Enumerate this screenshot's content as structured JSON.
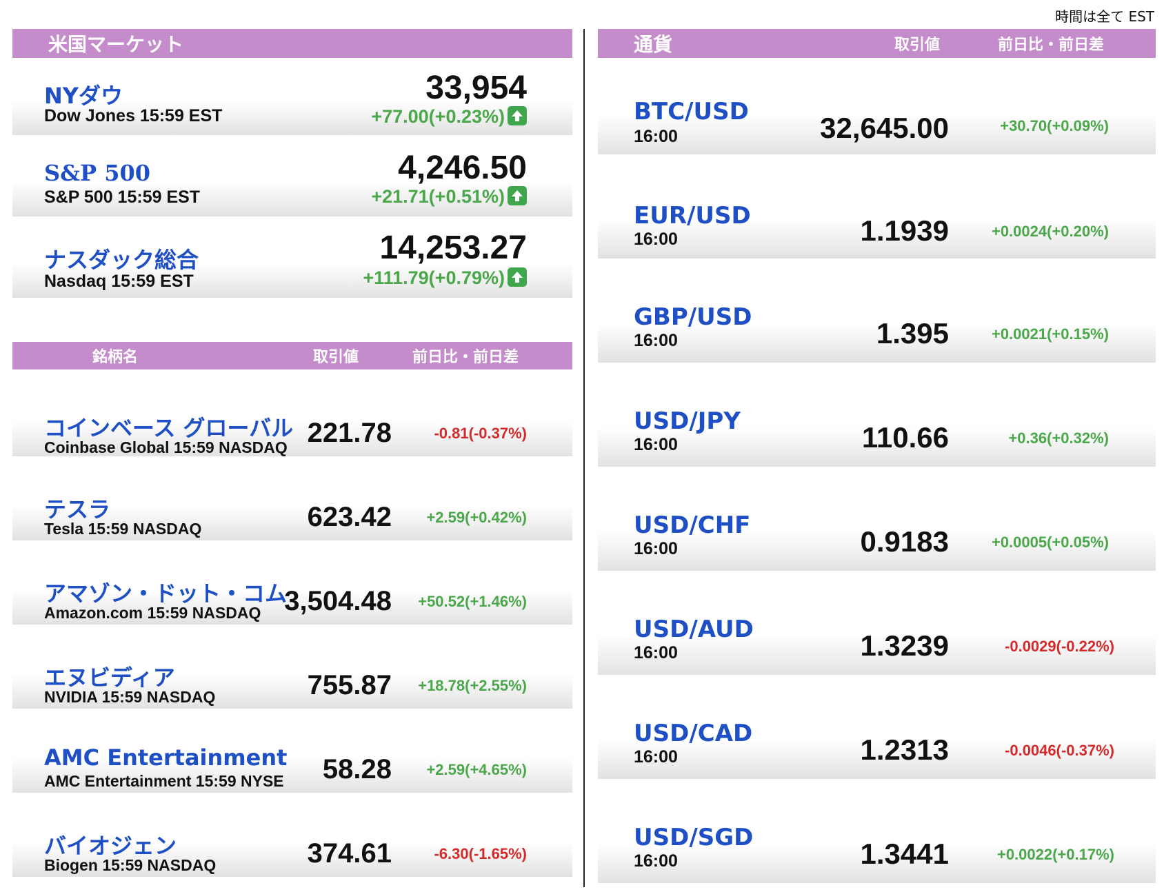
{
  "timezone_note": "時間は全て EST",
  "market": {
    "header": "米国マーケット",
    "indices": [
      {
        "name": "NYダウ",
        "sub": "Dow Jones 15:59 EST",
        "value": "33,954",
        "change": "+77.00(+0.23%)",
        "direction": "up"
      },
      {
        "name": "S&P 500",
        "sub": "S&P 500 15:59 EST",
        "value": "4,246.50",
        "change": "+21.71(+0.51%)",
        "direction": "up"
      },
      {
        "name": "ナスダック総合",
        "sub": "Nasdaq 15:59 EST",
        "value": "14,253.27",
        "change": "+111.79(+0.79%)",
        "direction": "up"
      }
    ]
  },
  "stocks": {
    "header": {
      "name": "銘柄名",
      "price": "取引値",
      "change": "前日比・前日差"
    },
    "items": [
      {
        "name": "コインベース グローバル",
        "sub": "Coinbase Global 15:59  NASDAQ",
        "value": "221.78",
        "change": "-0.81(-0.37%)",
        "direction": "down"
      },
      {
        "name": "テスラ",
        "sub": "Tesla 15:59  NASDAQ",
        "value": "623.42",
        "change": "+2.59(+0.42%)",
        "direction": "up"
      },
      {
        "name": "アマゾン・ドット・コム",
        "sub": "Amazon.com 15:59  NASDAQ",
        "value": "3,504.48",
        "change": "+50.52(+1.46%)",
        "direction": "up"
      },
      {
        "name": "エヌビディア",
        "sub": "NVIDIA 15:59  NASDAQ",
        "value": "755.87",
        "change": "+18.78(+2.55%)",
        "direction": "up"
      },
      {
        "name": "AMC Entertainment",
        "sub": "AMC Entertainment 15:59  NYSE",
        "value": "58.28",
        "change": "+2.59(+4.65%)",
        "direction": "up"
      },
      {
        "name": "バイオジェン",
        "sub": "Biogen 15:59  NASDAQ",
        "value": "374.61",
        "change": "-6.30(-1.65%)",
        "direction": "down"
      }
    ]
  },
  "currency": {
    "header": {
      "name": "通貨",
      "price": "取引値",
      "change": "前日比・前日差"
    },
    "items": [
      {
        "name": "BTC/USD",
        "time": "16:00",
        "value": "32,645.00",
        "change": "+30.70(+0.09%)",
        "direction": "up"
      },
      {
        "name": "EUR/USD",
        "time": "16:00",
        "value": "1.1939",
        "change": "+0.0024(+0.20%)",
        "direction": "up"
      },
      {
        "name": "GBP/USD",
        "time": "16:00",
        "value": "1.395",
        "change": "+0.0021(+0.15%)",
        "direction": "up"
      },
      {
        "name": "USD/JPY",
        "time": "16:00",
        "value": "110.66",
        "change": "+0.36(+0.32%)",
        "direction": "up"
      },
      {
        "name": "USD/CHF",
        "time": "16:00",
        "value": "0.9183",
        "change": "+0.0005(+0.05%)",
        "direction": "up"
      },
      {
        "name": "USD/AUD",
        "time": "16:00",
        "value": "1.3239",
        "change": "-0.0029(-0.22%)",
        "direction": "down"
      },
      {
        "name": "USD/CAD",
        "time": "16:00",
        "value": "1.2313",
        "change": "-0.0046(-0.37%)",
        "direction": "down"
      },
      {
        "name": "USD/SGD",
        "time": "16:00",
        "value": "1.3441",
        "change": "+0.0022(+0.17%)",
        "direction": "up"
      }
    ]
  },
  "colors": {
    "header_bar": "#c58ccc",
    "name_blue": "#1f4fc4",
    "up_green": "#4aa84a",
    "down_red": "#d42a2a",
    "arrow_green": "#3fa64e"
  }
}
